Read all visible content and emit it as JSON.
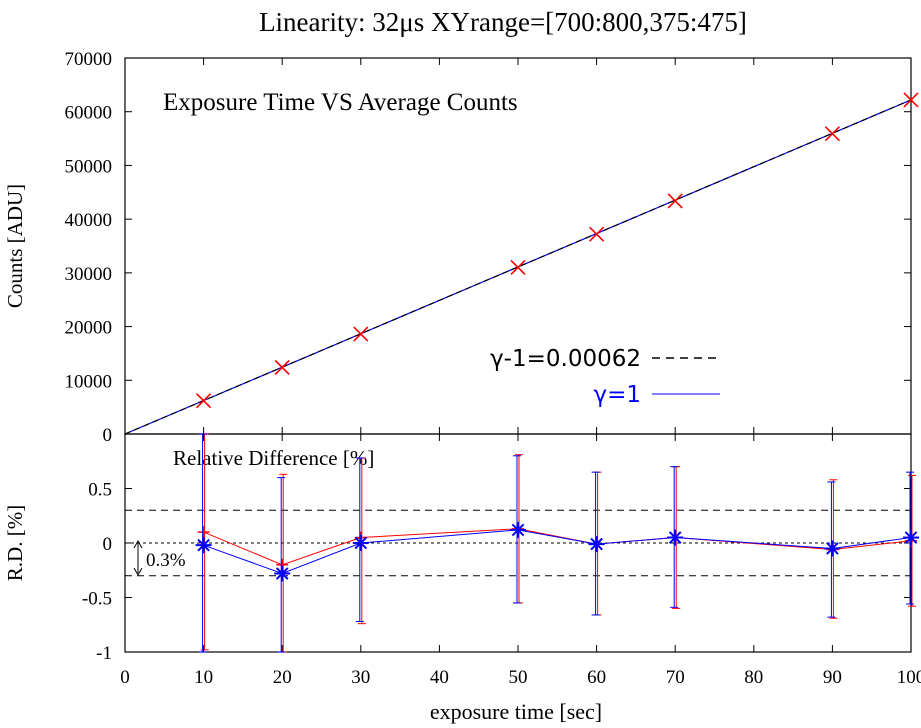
{
  "chart_data": [
    {
      "type": "scatter",
      "title": "Linearity: 32μs    XYrange=[700:800,375:475]",
      "annotation": "Exposure Time VS Average Counts",
      "ylabel": "Counts [ADU]",
      "xlim": [
        0,
        100
      ],
      "ylim": [
        0,
        70000
      ],
      "x_ticks": [
        "0",
        "10",
        "20",
        "30",
        "40",
        "50",
        "60",
        "70",
        "80",
        "90",
        "100"
      ],
      "y_ticks": [
        "0",
        "10000",
        "20000",
        "30000",
        "40000",
        "50000",
        "60000",
        "70000"
      ],
      "grid": false,
      "legend_position": "bottom-right",
      "series": [
        {
          "marker": "x",
          "color": "#ff0000",
          "x": [
            10,
            20,
            30,
            50,
            60,
            70,
            90,
            100
          ],
          "y": [
            6200,
            12400,
            18600,
            31000,
            37200,
            43400,
            55900,
            62200
          ]
        },
        {
          "name": "γ-1=0.00062",
          "style": "dashed-line",
          "color": "#000000",
          "x": [
            0,
            100
          ],
          "y": [
            0,
            62200
          ]
        },
        {
          "name": "γ=1",
          "style": "solid-line",
          "color": "#0000ff",
          "x": [
            0,
            100
          ],
          "y": [
            0,
            62200
          ]
        }
      ]
    },
    {
      "type": "line",
      "annotation": "Relative Difference [%]",
      "xlabel": "exposure time [sec]",
      "ylabel": "R.D. [%]",
      "xlim": [
        0,
        100
      ],
      "ylim": [
        -1,
        1
      ],
      "x_ticks": [
        "0",
        "10",
        "20",
        "30",
        "40",
        "50",
        "60",
        "70",
        "80",
        "90",
        "100"
      ],
      "y_ticks": [
        "-1",
        "-0.5",
        "0",
        "0.5"
      ],
      "reference_lines": [
        0.3,
        0,
        -0.3
      ],
      "bracket_label": "0.3%",
      "series": [
        {
          "marker": "plus",
          "color": "#ff0000",
          "x": [
            10,
            20,
            30,
            50,
            60,
            70,
            90,
            100
          ],
          "y": [
            0.1,
            -0.2,
            0.05,
            0.13,
            -0.01,
            0.05,
            -0.06,
            0.02
          ],
          "err_hi": [
            1.07,
            0.63,
            0.78,
            0.81,
            0.65,
            0.7,
            0.58,
            0.62
          ],
          "err_lo": [
            -0.98,
            -1.0,
            -0.74,
            -0.55,
            -0.66,
            -0.6,
            -0.69,
            -0.58
          ]
        },
        {
          "marker": "star",
          "color": "#0000ff",
          "x": [
            10,
            20,
            30,
            50,
            60,
            70,
            90,
            100
          ],
          "y": [
            -0.02,
            -0.28,
            0.0,
            0.12,
            -0.01,
            0.05,
            -0.05,
            0.05
          ],
          "err_hi": [
            1.05,
            0.6,
            0.78,
            0.8,
            0.65,
            0.7,
            0.56,
            0.65
          ],
          "err_lo": [
            -1.0,
            -1.0,
            -0.72,
            -0.55,
            -0.66,
            -0.59,
            -0.68,
            -0.56
          ]
        }
      ]
    }
  ]
}
